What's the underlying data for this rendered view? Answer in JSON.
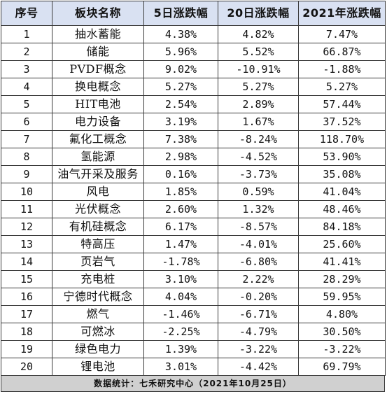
{
  "header": {
    "col_index": "序号",
    "col_name": "板块名称",
    "col_5d": "5日涨跌幅",
    "col_20d": "20日涨跌幅",
    "col_2021": "2021年涨跌幅"
  },
  "rows": [
    {
      "idx": "1",
      "name": "抽水蓄能",
      "d5": "4.38%",
      "d20": "4.82%",
      "y2021": "7.47%"
    },
    {
      "idx": "2",
      "name": "储能",
      "d5": "5.96%",
      "d20": "5.52%",
      "y2021": "66.87%"
    },
    {
      "idx": "3",
      "name": "PVDF概念",
      "d5": "9.02%",
      "d20": "-10.91%",
      "y2021": "-1.88%"
    },
    {
      "idx": "4",
      "name": "换电概念",
      "d5": "5.27%",
      "d20": "5.27%",
      "y2021": "5.27%"
    },
    {
      "idx": "5",
      "name": "HIT电池",
      "d5": "2.54%",
      "d20": "2.89%",
      "y2021": "57.44%"
    },
    {
      "idx": "6",
      "name": "电力设备",
      "d5": "3.19%",
      "d20": "1.67%",
      "y2021": "37.52%"
    },
    {
      "idx": "7",
      "name": "氟化工概念",
      "d5": "7.38%",
      "d20": "-8.24%",
      "y2021": "118.70%"
    },
    {
      "idx": "8",
      "name": "氢能源",
      "d5": "2.98%",
      "d20": "-4.52%",
      "y2021": "53.90%"
    },
    {
      "idx": "9",
      "name": "油气开采及服务",
      "d5": "0.16%",
      "d20": "-3.73%",
      "y2021": "35.08%"
    },
    {
      "idx": "10",
      "name": "风电",
      "d5": "1.85%",
      "d20": "0.59%",
      "y2021": "41.04%"
    },
    {
      "idx": "11",
      "name": "光伏概念",
      "d5": "2.60%",
      "d20": "1.32%",
      "y2021": "48.46%"
    },
    {
      "idx": "12",
      "name": "有机硅概念",
      "d5": "6.17%",
      "d20": "-8.57%",
      "y2021": "84.18%"
    },
    {
      "idx": "13",
      "name": "特高压",
      "d5": "1.47%",
      "d20": "-4.01%",
      "y2021": "25.60%"
    },
    {
      "idx": "14",
      "name": "页岩气",
      "d5": "-1.78%",
      "d20": "-6.80%",
      "y2021": "41.41%"
    },
    {
      "idx": "15",
      "name": "充电桩",
      "d5": "3.10%",
      "d20": "2.22%",
      "y2021": "28.29%"
    },
    {
      "idx": "16",
      "name": "宁德时代概念",
      "d5": "4.04%",
      "d20": "-0.20%",
      "y2021": "59.95%"
    },
    {
      "idx": "17",
      "name": "燃气",
      "d5": "-1.46%",
      "d20": "-6.71%",
      "y2021": "4.80%"
    },
    {
      "idx": "18",
      "name": "可燃冰",
      "d5": "-2.25%",
      "d20": "-4.79%",
      "y2021": "30.50%"
    },
    {
      "idx": "19",
      "name": "绿色电力",
      "d5": "1.39%",
      "d20": "-3.22%",
      "y2021": "-3.22%"
    },
    {
      "idx": "20",
      "name": "锂电池",
      "d5": "3.01%",
      "d20": "-4.42%",
      "y2021": "69.79%"
    }
  ],
  "footer": {
    "text": "数据统计：七禾研究中心（2021年10月25日）"
  },
  "colors": {
    "header_bg": "#d9e1f2",
    "footer_bg": "#d0d0d0",
    "border": "#3a3a3a"
  }
}
